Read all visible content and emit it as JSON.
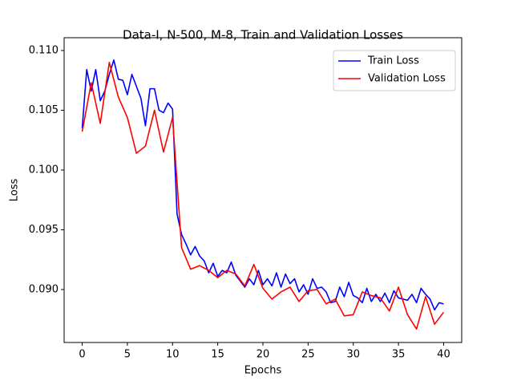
{
  "chart_data": {
    "type": "line",
    "title": "Data-I, N-500, M-8, Train and Validation Losses",
    "x_label": "Epochs",
    "y_label": "Loss",
    "xlim": [
      -2,
      42
    ],
    "ylim": [
      0.08557,
      0.11107
    ],
    "xticks": [
      0,
      5,
      10,
      15,
      20,
      25,
      30,
      35,
      40
    ],
    "yticks": [
      {
        "value": 0.09,
        "label": "0.090"
      },
      {
        "value": 0.095,
        "label": "0.095"
      },
      {
        "value": 0.1,
        "label": "0.100"
      },
      {
        "value": 0.105,
        "label": "0.105"
      },
      {
        "value": 0.11,
        "label": "0.110"
      }
    ],
    "legend": "upper right",
    "grid": false,
    "series": [
      {
        "name": "Train Loss",
        "color": "#0000ff",
        "x": [
          0,
          0.5,
          1,
          1.5,
          2,
          2.5,
          3,
          3.5,
          4,
          4.5,
          5,
          5.5,
          6,
          6.5,
          7,
          7.5,
          8,
          8.5,
          9,
          9.5,
          10,
          10.5,
          11,
          11.5,
          12,
          12.5,
          13,
          13.5,
          14,
          14.5,
          15,
          15.5,
          16,
          16.5,
          17,
          17.5,
          18,
          18.5,
          19,
          19.5,
          20,
          20.5,
          21,
          21.5,
          22,
          22.5,
          23,
          23.5,
          24,
          24.5,
          25,
          25.5,
          26,
          26.5,
          27,
          27.5,
          28,
          28.5,
          29,
          29.5,
          30,
          30.5,
          31,
          31.5,
          32,
          32.5,
          33,
          33.5,
          34,
          34.5,
          35,
          35.5,
          36,
          36.5,
          37,
          37.5,
          38,
          38.5,
          39,
          39.5,
          40
        ],
        "values": [
          0.1035,
          0.1084,
          0.1066,
          0.1084,
          0.1058,
          0.1066,
          0.108,
          0.1092,
          0.1076,
          0.1075,
          0.1063,
          0.108,
          0.107,
          0.106,
          0.1037,
          0.1068,
          0.1068,
          0.105,
          0.1048,
          0.1056,
          0.1051,
          0.0963,
          0.0946,
          0.0938,
          0.0929,
          0.0936,
          0.0928,
          0.0924,
          0.0914,
          0.0922,
          0.0911,
          0.0916,
          0.0914,
          0.0923,
          0.0912,
          0.0907,
          0.0902,
          0.0909,
          0.0904,
          0.0916,
          0.0904,
          0.0909,
          0.0903,
          0.0914,
          0.0902,
          0.0913,
          0.0905,
          0.0909,
          0.0898,
          0.0904,
          0.0896,
          0.0909,
          0.0901,
          0.0902,
          0.0898,
          0.0889,
          0.089,
          0.0902,
          0.0894,
          0.0906,
          0.0895,
          0.0893,
          0.0889,
          0.0901,
          0.089,
          0.0896,
          0.089,
          0.0897,
          0.0889,
          0.0899,
          0.0893,
          0.0892,
          0.0891,
          0.0896,
          0.0889,
          0.0901,
          0.0896,
          0.0892,
          0.0883,
          0.0889,
          0.0888
        ]
      },
      {
        "name": "Validation Loss",
        "color": "#ff0000",
        "x": [
          0,
          1,
          2,
          3,
          4,
          5,
          6,
          7,
          8,
          9,
          10,
          11,
          12,
          13,
          14,
          15,
          16,
          17,
          18,
          19,
          20,
          21,
          22,
          23,
          24,
          25,
          26,
          27,
          28,
          29,
          30,
          31,
          32,
          33,
          34,
          35,
          36,
          37,
          38,
          39,
          40
        ],
        "values": [
          0.1032,
          0.1073,
          0.1039,
          0.109,
          0.1061,
          0.1044,
          0.1014,
          0.102,
          0.105,
          0.1015,
          0.1044,
          0.0935,
          0.0917,
          0.092,
          0.0916,
          0.091,
          0.0916,
          0.0913,
          0.0903,
          0.0921,
          0.0901,
          0.0892,
          0.0898,
          0.0902,
          0.089,
          0.0899,
          0.09,
          0.0888,
          0.0892,
          0.0878,
          0.0879,
          0.0898,
          0.0895,
          0.0893,
          0.0882,
          0.0902,
          0.0879,
          0.0867,
          0.0894,
          0.0871,
          0.0881
        ]
      }
    ]
  }
}
